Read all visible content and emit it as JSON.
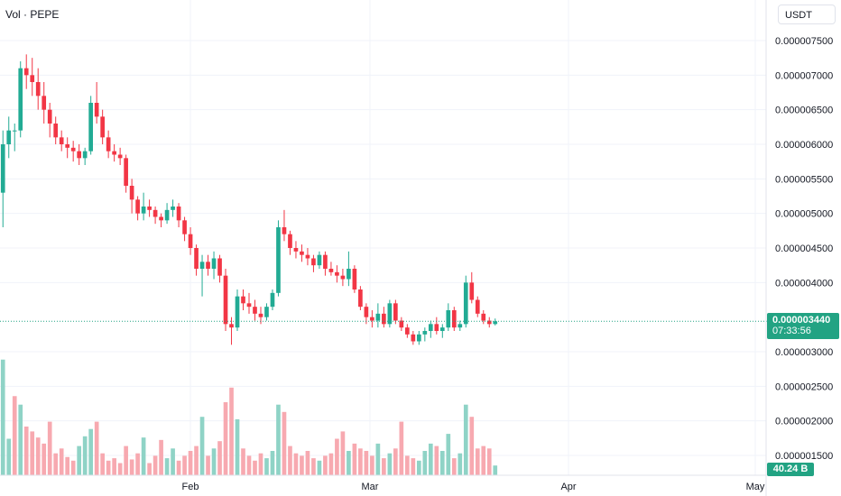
{
  "legend": {
    "text": "Vol · PEPE"
  },
  "currency_button": {
    "label": "USDT"
  },
  "last_price": {
    "value": "0.000003440",
    "countdown": "07:33:56",
    "price": 3.44e-06
  },
  "volume_label": {
    "value": "40.24 B"
  },
  "colors": {
    "up": "#22ab94",
    "down": "#f23645",
    "up_volume": "#8fd3c6",
    "down_volume": "#f7a9b0",
    "grid": "#f0f3fa",
    "price_line": "#22a383"
  },
  "chart_data": {
    "type": "candlestick",
    "y_axis": {
      "ticks": [
        "0.000007500",
        "0.000007000",
        "0.000006500",
        "0.000006000",
        "0.000005500",
        "0.000005000",
        "0.000004500",
        "0.000004000",
        "0.000003000",
        "0.000002500",
        "0.000002000",
        "0.000001500"
      ],
      "tick_values": [
        7.5e-06,
        7e-06,
        6.5e-06,
        6e-06,
        5.5e-06,
        5e-06,
        4.5e-06,
        4e-06,
        3e-06,
        2.5e-06,
        2e-06,
        1.5e-06
      ]
    },
    "x_axis": {
      "ticks": [
        "Feb",
        "Mar",
        "Apr",
        "May"
      ]
    },
    "grid": true,
    "candles_ohlc": [
      [
        5.3,
        6.2,
        4.8,
        6.0
      ],
      [
        6.0,
        6.4,
        5.8,
        6.2
      ],
      [
        6.2,
        6.3,
        5.9,
        6.2
      ],
      [
        6.2,
        7.2,
        6.1,
        7.1
      ],
      [
        7.1,
        7.3,
        6.8,
        7.0
      ],
      [
        7.0,
        7.25,
        6.7,
        6.9
      ],
      [
        6.9,
        7.1,
        6.5,
        6.7
      ],
      [
        6.7,
        6.9,
        6.3,
        6.5
      ],
      [
        6.5,
        6.6,
        6.1,
        6.3
      ],
      [
        6.3,
        6.4,
        6.0,
        6.1
      ],
      [
        6.1,
        6.2,
        5.9,
        6.0
      ],
      [
        6.0,
        6.1,
        5.8,
        5.95
      ],
      [
        5.95,
        6.05,
        5.75,
        5.9
      ],
      [
        5.9,
        6.0,
        5.7,
        5.8
      ],
      [
        5.8,
        5.95,
        5.7,
        5.9
      ],
      [
        5.9,
        6.7,
        5.85,
        6.6
      ],
      [
        6.6,
        6.9,
        6.3,
        6.4
      ],
      [
        6.4,
        6.5,
        6.0,
        6.1
      ],
      [
        6.1,
        6.2,
        5.8,
        5.9
      ],
      [
        5.9,
        6.0,
        5.75,
        5.85
      ],
      [
        5.85,
        5.95,
        5.7,
        5.8
      ],
      [
        5.8,
        5.85,
        5.3,
        5.4
      ],
      [
        5.4,
        5.5,
        5.0,
        5.2
      ],
      [
        5.2,
        5.25,
        4.9,
        5.0
      ],
      [
        5.0,
        5.3,
        4.9,
        5.1
      ],
      [
        5.1,
        5.2,
        4.95,
        5.05
      ],
      [
        5.05,
        5.1,
        4.85,
        4.95
      ],
      [
        4.95,
        5.0,
        4.8,
        4.9
      ],
      [
        4.9,
        5.15,
        4.85,
        5.05
      ],
      [
        5.05,
        5.2,
        4.95,
        5.1
      ],
      [
        5.1,
        5.15,
        4.8,
        4.9
      ],
      [
        4.9,
        4.95,
        4.6,
        4.7
      ],
      [
        4.7,
        4.8,
        4.4,
        4.5
      ],
      [
        4.5,
        4.55,
        4.1,
        4.2
      ],
      [
        4.2,
        4.4,
        3.8,
        4.3
      ],
      [
        4.3,
        4.4,
        4.1,
        4.2
      ],
      [
        4.2,
        4.45,
        4.05,
        4.35
      ],
      [
        4.35,
        4.4,
        4.0,
        4.1
      ],
      [
        4.1,
        4.2,
        3.3,
        3.4
      ],
      [
        3.4,
        3.5,
        3.1,
        3.35
      ],
      [
        3.35,
        3.9,
        3.3,
        3.8
      ],
      [
        3.8,
        3.9,
        3.6,
        3.7
      ],
      [
        3.7,
        3.85,
        3.55,
        3.65
      ],
      [
        3.65,
        3.75,
        3.45,
        3.55
      ],
      [
        3.55,
        3.65,
        3.4,
        3.5
      ],
      [
        3.5,
        3.7,
        3.45,
        3.65
      ],
      [
        3.65,
        3.9,
        3.6,
        3.85
      ],
      [
        3.85,
        4.9,
        3.8,
        4.8
      ],
      [
        4.8,
        5.05,
        4.6,
        4.7
      ],
      [
        4.7,
        4.75,
        4.4,
        4.5
      ],
      [
        4.5,
        4.6,
        4.35,
        4.45
      ],
      [
        4.45,
        4.55,
        4.3,
        4.4
      ],
      [
        4.4,
        4.5,
        4.25,
        4.35
      ],
      [
        4.35,
        4.4,
        4.15,
        4.25
      ],
      [
        4.25,
        4.45,
        4.2,
        4.4
      ],
      [
        4.4,
        4.45,
        4.1,
        4.2
      ],
      [
        4.2,
        4.3,
        4.1,
        4.15
      ],
      [
        4.15,
        4.25,
        4.0,
        4.1
      ],
      [
        4.1,
        4.2,
        3.95,
        4.05
      ],
      [
        4.05,
        4.45,
        3.95,
        4.2
      ],
      [
        4.2,
        4.25,
        3.85,
        3.9
      ],
      [
        3.9,
        3.95,
        3.6,
        3.65
      ],
      [
        3.65,
        3.7,
        3.4,
        3.5
      ],
      [
        3.5,
        3.6,
        3.35,
        3.45
      ],
      [
        3.45,
        3.7,
        3.35,
        3.55
      ],
      [
        3.55,
        3.65,
        3.35,
        3.4
      ],
      [
        3.4,
        3.75,
        3.35,
        3.7
      ],
      [
        3.7,
        3.75,
        3.4,
        3.45
      ],
      [
        3.45,
        3.5,
        3.3,
        3.35
      ],
      [
        3.35,
        3.4,
        3.2,
        3.25
      ],
      [
        3.25,
        3.3,
        3.1,
        3.15
      ],
      [
        3.15,
        3.3,
        3.1,
        3.25
      ],
      [
        3.25,
        3.35,
        3.15,
        3.3
      ],
      [
        3.3,
        3.45,
        3.2,
        3.4
      ],
      [
        3.4,
        3.5,
        3.25,
        3.3
      ],
      [
        3.3,
        3.4,
        3.2,
        3.35
      ],
      [
        3.35,
        3.7,
        3.3,
        3.6
      ],
      [
        3.6,
        3.65,
        3.3,
        3.35
      ],
      [
        3.35,
        3.45,
        3.3,
        3.4
      ],
      [
        3.4,
        4.1,
        3.35,
        4.0
      ],
      [
        4.0,
        4.15,
        3.7,
        3.75
      ],
      [
        3.75,
        3.8,
        3.5,
        3.55
      ],
      [
        3.55,
        3.6,
        3.4,
        3.45
      ],
      [
        3.45,
        3.5,
        3.35,
        3.4
      ],
      [
        3.4,
        3.48,
        3.38,
        3.44
      ]
    ],
    "candle_price_unit": 1e-06,
    "volume_relative": [
      0.95,
      0.3,
      0.65,
      0.58,
      0.4,
      0.36,
      0.31,
      0.26,
      0.44,
      0.18,
      0.22,
      0.15,
      0.12,
      0.24,
      0.32,
      0.38,
      0.44,
      0.18,
      0.12,
      0.14,
      0.1,
      0.24,
      0.13,
      0.18,
      0.31,
      0.1,
      0.16,
      0.29,
      0.14,
      0.22,
      0.12,
      0.16,
      0.2,
      0.24,
      0.48,
      0.16,
      0.22,
      0.28,
      0.6,
      0.72,
      0.46,
      0.22,
      0.16,
      0.12,
      0.18,
      0.14,
      0.2,
      0.58,
      0.52,
      0.24,
      0.18,
      0.16,
      0.2,
      0.14,
      0.12,
      0.16,
      0.18,
      0.3,
      0.36,
      0.2,
      0.26,
      0.22,
      0.2,
      0.16,
      0.26,
      0.14,
      0.18,
      0.22,
      0.44,
      0.16,
      0.14,
      0.12,
      0.2,
      0.26,
      0.24,
      0.2,
      0.34,
      0.14,
      0.18,
      0.58,
      0.48,
      0.22,
      0.24,
      0.22,
      0.08
    ],
    "volume_up": [
      true,
      true,
      false,
      true,
      false,
      false,
      false,
      false,
      false,
      false,
      false,
      false,
      false,
      true,
      true,
      true,
      false,
      false,
      false,
      false,
      false,
      false,
      false,
      false,
      true,
      false,
      false,
      false,
      true,
      true,
      false,
      false,
      false,
      false,
      true,
      false,
      true,
      false,
      false,
      false,
      true,
      false,
      false,
      false,
      false,
      true,
      true,
      true,
      false,
      false,
      false,
      false,
      false,
      false,
      true,
      false,
      false,
      false,
      false,
      true,
      false,
      false,
      false,
      false,
      true,
      false,
      true,
      false,
      false,
      false,
      false,
      true,
      true,
      true,
      false,
      true,
      true,
      false,
      true,
      true,
      false,
      false,
      false,
      false,
      true
    ]
  }
}
